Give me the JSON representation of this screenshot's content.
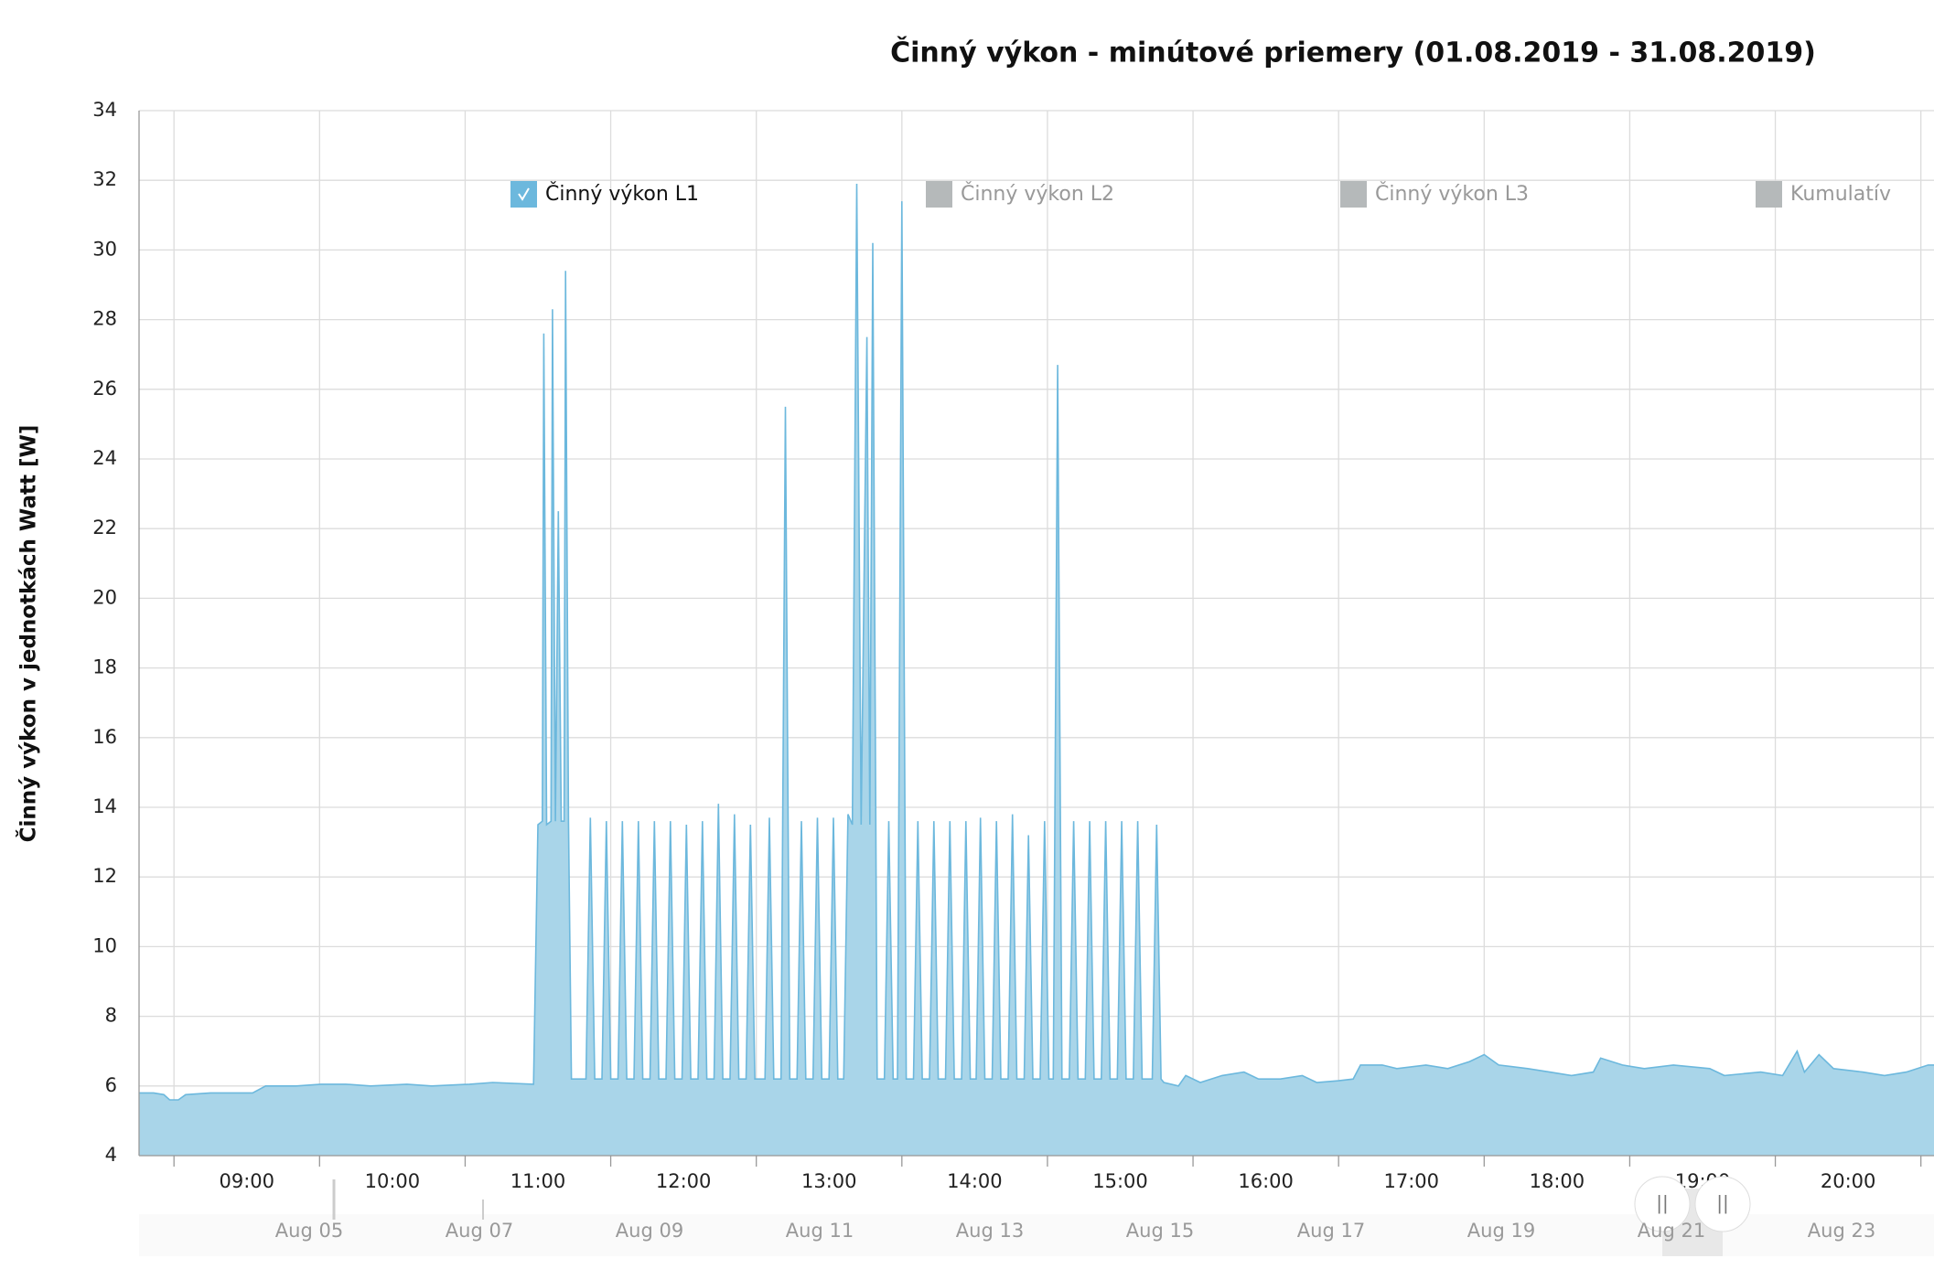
{
  "chart_data": {
    "type": "area",
    "title": "Činný výkon - minútové priemery (01.08.2019 - 31.08.2019)",
    "y_label": "Činný výkon v jednotkách Watt [W]",
    "ylim": [
      4,
      34
    ],
    "yticks": [
      4,
      6,
      8,
      10,
      12,
      14,
      16,
      18,
      20,
      22,
      24,
      26,
      28,
      30,
      32,
      34
    ],
    "xlim": [
      8.26,
      20.59
    ],
    "xticks": [
      {
        "value": 9,
        "label": "09:00"
      },
      {
        "value": 10,
        "label": "10:00"
      },
      {
        "value": 11,
        "label": "11:00"
      },
      {
        "value": 12,
        "label": "12:00"
      },
      {
        "value": 13,
        "label": "13:00"
      },
      {
        "value": 14,
        "label": "14:00"
      },
      {
        "value": 15,
        "label": "15:00"
      },
      {
        "value": 16,
        "label": "16:00"
      },
      {
        "value": 17,
        "label": "17:00"
      },
      {
        "value": 18,
        "label": "18:00"
      },
      {
        "value": 19,
        "label": "19:00"
      },
      {
        "value": 20,
        "label": "20:00"
      }
    ],
    "grid": true,
    "legend": [
      "Činný výkon L1",
      "Činný výkon L2",
      "Činný výkon L3",
      "Kumulatív"
    ],
    "series": [
      {
        "name": "Činný výkon L1",
        "color": "#6cb8dd",
        "fill": "#a9d5e9",
        "x": [
          8.26,
          8.36,
          8.43,
          8.47,
          8.53,
          8.58,
          8.75,
          8.92,
          9.04,
          9.13,
          9.34,
          9.51,
          9.68,
          9.85,
          10.1,
          10.27,
          10.53,
          10.69,
          10.97,
          11.0,
          11.03,
          11.04,
          11.06,
          11.09,
          11.1,
          11.12,
          11.14,
          11.16,
          11.18,
          11.19,
          11.21,
          11.23,
          11.33,
          11.36,
          11.39,
          11.44,
          11.47,
          11.5,
          11.55,
          11.58,
          11.61,
          11.66,
          11.69,
          11.72,
          11.77,
          11.8,
          11.83,
          11.88,
          11.91,
          11.94,
          11.99,
          12.02,
          12.05,
          12.1,
          12.13,
          12.16,
          12.21,
          12.24,
          12.27,
          12.32,
          12.35,
          12.38,
          12.43,
          12.46,
          12.49,
          12.56,
          12.59,
          12.62,
          12.67,
          12.7,
          12.73,
          12.78,
          12.81,
          12.84,
          12.89,
          12.92,
          12.95,
          13.0,
          13.03,
          13.06,
          13.1,
          13.13,
          13.16,
          13.19,
          13.22,
          13.26,
          13.28,
          13.3,
          13.33,
          13.38,
          13.41,
          13.44,
          13.47,
          13.5,
          13.53,
          13.58,
          13.61,
          13.64,
          13.69,
          13.72,
          13.75,
          13.8,
          13.83,
          13.86,
          13.91,
          13.94,
          13.97,
          14.01,
          14.04,
          14.07,
          14.12,
          14.15,
          14.18,
          14.23,
          14.26,
          14.29,
          14.34,
          14.37,
          14.4,
          14.45,
          14.48,
          14.51,
          14.54,
          14.57,
          14.6,
          14.65,
          14.68,
          14.71,
          14.76,
          14.79,
          14.82,
          14.87,
          14.9,
          14.93,
          14.98,
          15.01,
          15.04,
          15.09,
          15.12,
          15.15,
          15.22,
          15.25,
          15.28,
          15.3,
          15.4,
          15.45,
          15.55,
          15.7,
          15.85,
          15.95,
          16.1,
          16.25,
          16.35,
          16.5,
          16.6,
          16.65,
          16.8,
          16.9,
          17.1,
          17.25,
          17.4,
          17.5,
          17.6,
          17.8,
          17.95,
          18.1,
          18.25,
          18.3,
          18.45,
          18.6,
          18.8,
          19.05,
          19.15,
          19.4,
          19.55,
          19.65,
          19.7,
          19.8,
          19.9,
          20.1,
          20.25,
          20.4,
          20.55,
          20.59
        ],
        "values": [
          5.8,
          5.8,
          5.75,
          5.6,
          5.6,
          5.75,
          5.8,
          5.8,
          5.8,
          6.0,
          6.0,
          6.05,
          6.05,
          6.0,
          6.05,
          6.0,
          6.05,
          6.1,
          6.05,
          13.5,
          13.6,
          27.6,
          13.5,
          13.6,
          28.3,
          13.6,
          22.5,
          13.6,
          13.6,
          29.4,
          13.6,
          6.2,
          6.2,
          13.7,
          6.2,
          6.2,
          13.6,
          6.2,
          6.2,
          13.6,
          6.2,
          6.2,
          13.6,
          6.2,
          6.2,
          13.6,
          6.2,
          6.2,
          13.6,
          6.2,
          6.2,
          13.5,
          6.2,
          6.2,
          13.6,
          6.2,
          6.2,
          14.1,
          6.2,
          6.2,
          13.8,
          6.2,
          6.2,
          13.5,
          6.2,
          6.2,
          13.7,
          6.2,
          6.2,
          25.5,
          6.2,
          6.2,
          13.6,
          6.2,
          6.2,
          13.7,
          6.2,
          6.2,
          13.7,
          6.2,
          6.2,
          13.8,
          13.5,
          31.9,
          13.5,
          27.5,
          13.5,
          30.2,
          6.2,
          6.2,
          13.6,
          6.2,
          6.2,
          31.4,
          6.2,
          6.2,
          13.6,
          6.2,
          6.2,
          13.6,
          6.2,
          6.2,
          13.6,
          6.2,
          6.2,
          13.6,
          6.2,
          6.2,
          13.7,
          6.2,
          6.2,
          13.6,
          6.2,
          6.2,
          13.8,
          6.2,
          6.2,
          13.2,
          6.2,
          6.2,
          13.6,
          6.2,
          6.2,
          26.7,
          6.2,
          6.2,
          13.6,
          6.2,
          6.2,
          13.6,
          6.2,
          6.2,
          13.6,
          6.2,
          6.2,
          13.6,
          6.2,
          6.2,
          13.6,
          6.2,
          6.2,
          13.5,
          6.2,
          6.1,
          6.0,
          6.3,
          6.1,
          6.3,
          6.4,
          6.2,
          6.2,
          6.3,
          6.1,
          6.15,
          6.2,
          6.6,
          6.6,
          6.5,
          6.6,
          6.5,
          6.7,
          6.9,
          6.6,
          6.5,
          6.4,
          6.3,
          6.4,
          6.8,
          6.6,
          6.5,
          6.6,
          6.5,
          6.3,
          6.4,
          6.3,
          7.0,
          6.4,
          6.9,
          6.5,
          6.4,
          6.3,
          6.4,
          6.6,
          6.6
        ]
      }
    ]
  },
  "navigator": {
    "labels": [
      "Aug 05",
      "Aug 07",
      "Aug 09",
      "Aug 11",
      "Aug 13",
      "Aug 15",
      "Aug 17",
      "Aug 19",
      "Aug 21",
      "Aug 23"
    ]
  }
}
